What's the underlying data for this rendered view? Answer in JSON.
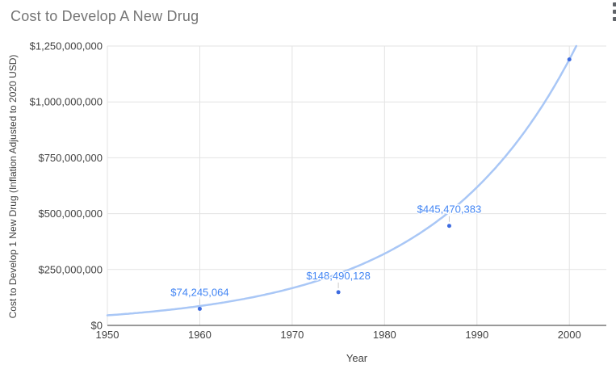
{
  "chart_data": {
    "type": "scatter",
    "title": "Cost to Develop A New Drug",
    "xlabel": "Year",
    "ylabel": "Cost to Develop 1 New Drug (Inflation Adjusted to 2020 USD)",
    "xlim": [
      1950,
      2004
    ],
    "ylim": [
      0,
      1250000000
    ],
    "grid": true,
    "legend": "none",
    "x_ticks": [
      {
        "value": 1950,
        "label": "1950"
      },
      {
        "value": 1960,
        "label": "1960"
      },
      {
        "value": 1970,
        "label": "1970"
      },
      {
        "value": 1980,
        "label": "1980"
      },
      {
        "value": 1990,
        "label": "1990"
      },
      {
        "value": 2000,
        "label": "2000"
      }
    ],
    "y_ticks": [
      {
        "value": 0,
        "label": "$0"
      },
      {
        "value": 250000000,
        "label": "$250,000,000"
      },
      {
        "value": 500000000,
        "label": "$500,000,000"
      },
      {
        "value": 750000000,
        "label": "$750,000,000"
      },
      {
        "value": 1000000000,
        "label": "$1,000,000,000"
      },
      {
        "value": 1250000000,
        "label": "$1,250,000,000"
      }
    ],
    "points": [
      {
        "year": 1960,
        "value": 74245064,
        "label": "$74,245,064"
      },
      {
        "year": 1975,
        "value": 148490128,
        "label": "$148,490,128"
      },
      {
        "year": 1987,
        "value": 445470383,
        "label": "$445,470,383"
      },
      {
        "year": 2000,
        "value": 1190000000,
        "label": ""
      }
    ],
    "trendline": {
      "type": "exponential",
      "base_year": 1950,
      "base_value": 45000000,
      "growth_rate_per_year": 0.0655
    },
    "colors": {
      "point": "#3d6be0",
      "data_label": "#4285f4",
      "trendline": "#a9c7f6",
      "gridline": "#e3e3e3",
      "axis_line": "#333333",
      "tick_text": "#424242",
      "title_text": "#757575",
      "axis_title_text": "#424242",
      "leader_line": "#cccccc"
    }
  },
  "icons": {
    "more_options": "vertical-ellipsis"
  }
}
